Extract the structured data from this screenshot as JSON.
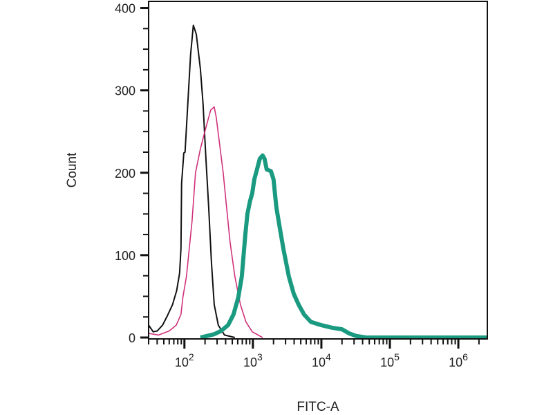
{
  "chart_data": {
    "type": "line",
    "title": "",
    "xlabel": "FITC-A",
    "ylabel": "Count",
    "xscale": "log",
    "xlim": [
      30,
      2650000
    ],
    "ylim": [
      0,
      408
    ],
    "grid": false,
    "y_ticks": [
      "0",
      "100",
      "200",
      "300",
      "400"
    ],
    "y_tick_values": [
      0,
      100,
      200,
      300,
      400
    ],
    "x_ticks": [
      {
        "base": "10",
        "exp": "2",
        "value": 100
      },
      {
        "base": "10",
        "exp": "3",
        "value": 1000
      },
      {
        "base": "10",
        "exp": "4",
        "value": 10000
      },
      {
        "base": "10",
        "exp": "5",
        "value": 100000
      },
      {
        "base": "10",
        "exp": "6",
        "value": 1000000
      }
    ],
    "series": [
      {
        "color": "#111111",
        "x": [
          30,
          35,
          40,
          48,
          56,
          67,
          77,
          85,
          89,
          91,
          98,
          102,
          112,
          123,
          135,
          149,
          171,
          187,
          206,
          226,
          248,
          272,
          312,
          385,
          546
        ],
        "y": [
          15,
          7,
          8,
          15,
          26,
          40,
          57,
          78,
          108,
          187,
          224,
          225,
          284,
          343,
          379,
          368,
          326,
          284,
          217,
          158,
          91,
          40,
          15,
          3,
          0
        ]
      },
      {
        "color": "#d0307a",
        "x": [
          30,
          42,
          60,
          76,
          89,
          95,
          107,
          129,
          145,
          171,
          206,
          242,
          272,
          292,
          327,
          368,
          413,
          464,
          546,
          657,
          792,
          978,
          1385
        ],
        "y": [
          5,
          3,
          8,
          15,
          28,
          49,
          74,
          141,
          200,
          229,
          255,
          276,
          280,
          267,
          234,
          200,
          158,
          116,
          74,
          40,
          19,
          7,
          0
        ]
      },
      {
        "color": "#1a9a80",
        "x": [
          171,
          272,
          343,
          433,
          521,
          613,
          689,
          773,
          830,
          910,
          978,
          1048,
          1149,
          1260,
          1385,
          1480,
          1590,
          1830,
          2000,
          2200,
          2470,
          2780,
          3350,
          3950,
          4650,
          5580,
          7020,
          9970,
          14100,
          20000,
          25400,
          31800,
          45200,
          2600000
        ],
        "y": [
          0,
          4,
          8,
          15,
          28,
          49,
          74,
          124,
          150,
          166,
          175,
          192,
          204,
          217,
          221,
          217,
          204,
          202,
          192,
          158,
          133,
          108,
          74,
          53,
          40,
          28,
          19,
          15,
          12,
          10,
          5,
          2,
          0,
          0
        ]
      }
    ]
  }
}
